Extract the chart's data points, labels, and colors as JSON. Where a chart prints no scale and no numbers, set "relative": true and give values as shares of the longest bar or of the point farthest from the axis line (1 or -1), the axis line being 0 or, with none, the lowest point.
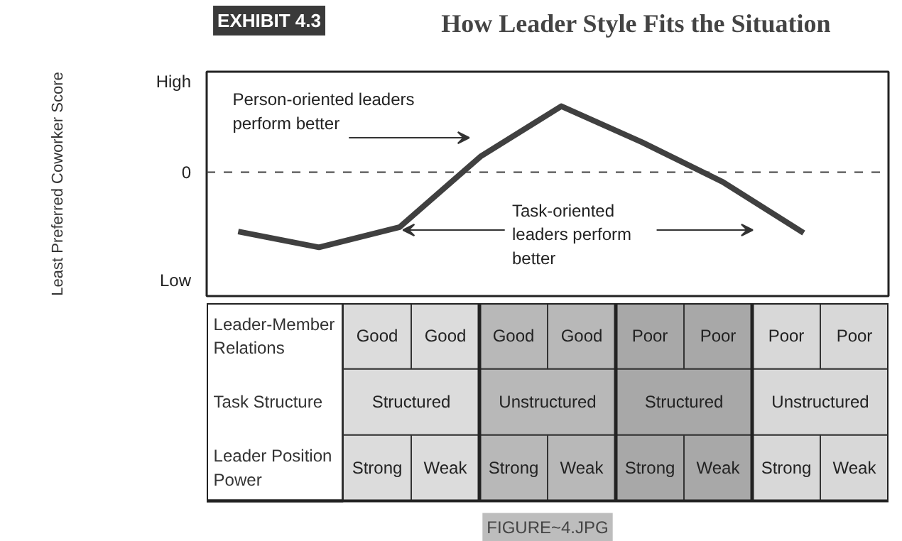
{
  "chart_data": [
    {
      "type": "line",
      "title": "How Leader Style Fits the Situation",
      "subtitle": "EXHIBIT 4.3",
      "ylabel": "Least Preferred Coworker Score",
      "relative": true,
      "categories": [
        null,
        null,
        null,
        null,
        null,
        null,
        null,
        null
      ],
      "grid": false,
      "series": [
        {
          "color": "#404040",
          "values": [
            -0.79,
            -1,
            -0.73,
            0.21,
            0.88,
            0.4,
            -0.13,
            -0.81
          ]
        }
      ],
      "ref_lines": [
        {
          "axis": "y",
          "value": 0,
          "label": "0",
          "line_style": "dashed",
          "color": "#404040"
        }
      ],
      "annotations": [
        "High",
        "Low",
        "Person-oriented leaders\nperform better",
        "Task-oriented\nleaders perform\nbetter"
      ]
    },
    {
      "type": "other",
      "categories": [
        null,
        null,
        null,
        null,
        null,
        null,
        null,
        null
      ],
      "y_categories": [
        "Leader-Member\nRelations",
        "Task Structure",
        "Leader Position\nPower"
      ],
      "cell_labels": [
        [
          "Good",
          "Good",
          "Good",
          "Good",
          "Poor",
          "Poor",
          "Poor",
          "Poor"
        ],
        [
          "Structured",
          null,
          "Unstructured",
          null,
          "Structured",
          null,
          "Unstructured",
          null
        ],
        [
          "Strong",
          "Weak",
          "Strong",
          "Weak",
          "Strong",
          "Weak",
          "Strong",
          "Weak"
        ]
      ],
      "colors": [
        "#dcdcdc",
        "#dcdcdc",
        "#b8b8b8",
        "#b8b8b8",
        "#a8a8a8",
        "#a8a8a8",
        "#d8d8d8",
        "#d8d8d8"
      ],
      "annotations": [
        "FIGURE~4.JPG"
      ]
    }
  ]
}
